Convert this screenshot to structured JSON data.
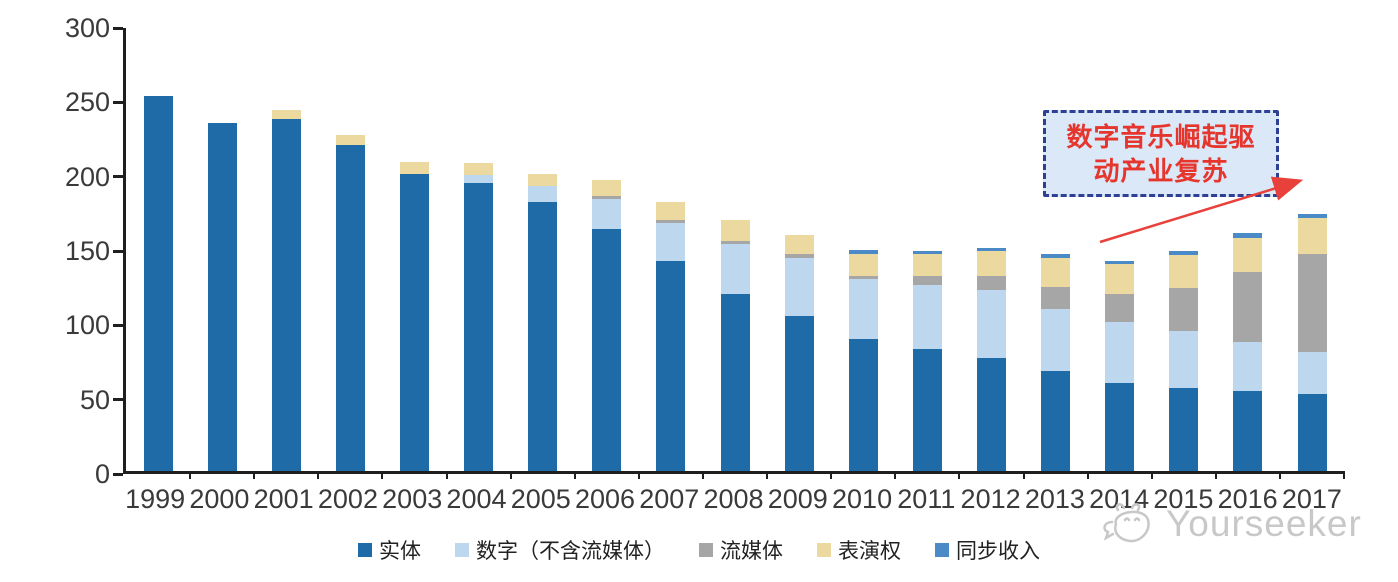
{
  "chart_data": {
    "type": "bar",
    "stacked": true,
    "title": "",
    "xlabel": "",
    "ylabel": "",
    "ylim": [
      0,
      300
    ],
    "yticks": [
      0,
      50,
      100,
      150,
      200,
      250,
      300
    ],
    "grid": false,
    "legend_position": "bottom",
    "categories": [
      "1999",
      "2000",
      "2001",
      "2002",
      "2003",
      "2004",
      "2005",
      "2006",
      "2007",
      "2008",
      "2009",
      "2010",
      "2011",
      "2012",
      "2013",
      "2014",
      "2015",
      "2016",
      "2017"
    ],
    "series": [
      {
        "name": "实体",
        "color": "#1E6BA8",
        "values": [
          252,
          234,
          237,
          219,
          200,
          194,
          181,
          163,
          141,
          119,
          104,
          89,
          82,
          76,
          67,
          59,
          56,
          54,
          52
        ]
      },
      {
        "name": "数字（不含流媒体）",
        "color": "#BDD7EE",
        "values": [
          0,
          0,
          0,
          0,
          0,
          5,
          11,
          20,
          26,
          34,
          39,
          40,
          43,
          46,
          42,
          41,
          38,
          33,
          28
        ]
      },
      {
        "name": "流媒体",
        "color": "#A6A6A6",
        "values": [
          0,
          0,
          0,
          0,
          0,
          0,
          0,
          2,
          2,
          2,
          3,
          2,
          6,
          9,
          15,
          19,
          29,
          47,
          66
        ]
      },
      {
        "name": "表演权",
        "color": "#EBD9A0",
        "values": [
          0,
          0,
          6,
          7,
          8,
          8,
          8,
          11,
          12,
          14,
          13,
          15,
          15,
          17,
          19,
          20,
          22,
          23,
          24
        ]
      },
      {
        "name": "同步收入",
        "color": "#4A8AC6",
        "values": [
          0,
          0,
          0,
          0,
          0,
          0,
          0,
          0,
          0,
          0,
          0,
          3,
          2,
          2,
          3,
          2,
          3,
          3,
          3
        ]
      }
    ],
    "totals": [
      252,
      234,
      243,
      226,
      208,
      207,
      200,
      196,
      181,
      169,
      159,
      149,
      148,
      150,
      146,
      141,
      148,
      160,
      173
    ]
  },
  "annotation": {
    "line1": "数字音乐崛起驱",
    "line2": "动产业复苏",
    "text_color": "#e5352d",
    "box_fill": "#dae8f7",
    "box_border": "#2e3f94",
    "arrow_color": "#e8413c"
  },
  "watermark": {
    "text": "Yourseeker",
    "color": "#c8c8c8"
  }
}
